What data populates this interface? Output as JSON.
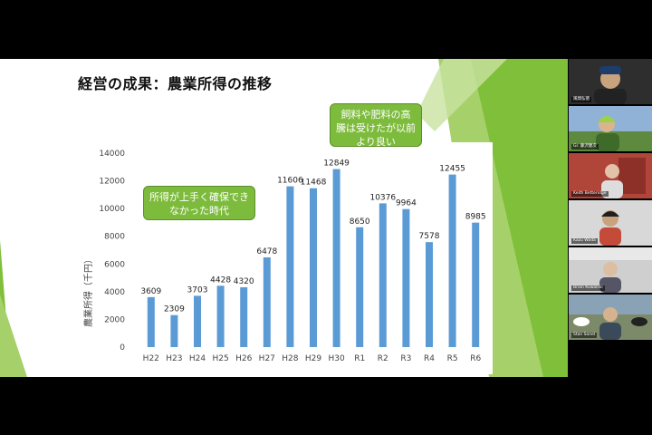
{
  "slide": {
    "title": "経営の成果：農業所得の推移",
    "callout_left": [
      "所得が上手く確保でき",
      "なかった時代"
    ],
    "callout_top": [
      "飼料や肥料の高",
      "騰は受けたが以前",
      "より良い"
    ]
  },
  "chart_data": {
    "type": "bar",
    "categories": [
      "H22",
      "H23",
      "H24",
      "H25",
      "H26",
      "H27",
      "H28",
      "H29",
      "H30",
      "R1",
      "R2",
      "R3",
      "R4",
      "R5",
      "R6"
    ],
    "values": [
      3609,
      2309,
      3703,
      4428,
      4320,
      6478,
      11606,
      11468,
      12849,
      8650,
      10376,
      9964,
      7578,
      12455,
      8985
    ],
    "ylabel": "農業所得（千円）",
    "ylim": [
      0,
      14000
    ],
    "yticks": [
      0,
      2000,
      4000,
      6000,
      8000,
      10000,
      12000,
      14000
    ],
    "bar_color": "#5b9bd5",
    "grid": false
  },
  "participants": [
    {
      "name": "風間弘徳",
      "bg": "#3a3a3a"
    },
    {
      "name": "Gr. 藤沢健次",
      "bg": "#6b8e4e"
    },
    {
      "name": "Keith Betteridge",
      "bg": "#b0453a"
    },
    {
      "name": "Kazu Wada",
      "bg": "#d8d8d8"
    },
    {
      "name": "Brian Kowalski",
      "bg": "#cfcfcf"
    },
    {
      "name": "Stan Sonel",
      "bg": "#7d8a6a"
    }
  ]
}
